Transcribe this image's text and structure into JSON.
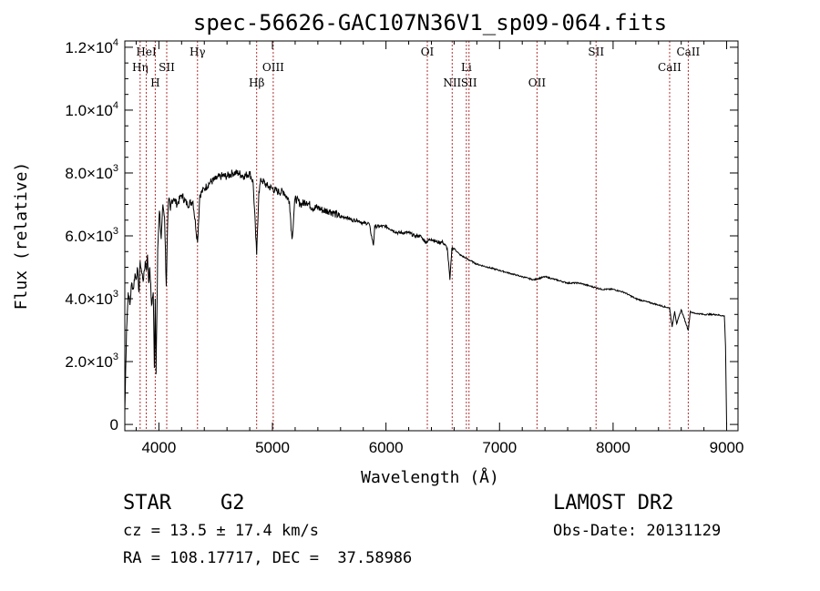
{
  "chart_data": {
    "type": "line",
    "title": "spec-56626-GAC107N36V1_sp09-064.fits",
    "xlabel": "Wavelength (Å)",
    "ylabel": "Flux (relative)",
    "xlim": [
      3700,
      9100
    ],
    "ylim": [
      -200,
      12200
    ],
    "x_ticks": [
      4000,
      5000,
      6000,
      7000,
      8000,
      9000
    ],
    "x_tick_labels": [
      "4000",
      "5000",
      "6000",
      "7000",
      "8000",
      "9000"
    ],
    "y_ticks": [
      0,
      2000,
      4000,
      6000,
      8000,
      10000,
      12000
    ],
    "y_tick_labels": [
      {
        "mantissa": "0",
        "exp": ""
      },
      {
        "mantissa": "2.0×10",
        "exp": "3"
      },
      {
        "mantissa": "4.0×10",
        "exp": "3"
      },
      {
        "mantissa": "6.0×10",
        "exp": "3"
      },
      {
        "mantissa": "8.0×10",
        "exp": "3"
      },
      {
        "mantissa": "1.0×10",
        "exp": "4"
      },
      {
        "mantissa": "1.2×10",
        "exp": "4"
      }
    ],
    "series": [
      {
        "color": "#000000",
        "x": [
          3700,
          3715,
          3730,
          3745,
          3760,
          3775,
          3790,
          3800,
          3810,
          3825,
          3835,
          3850,
          3865,
          3880,
          3890,
          3900,
          3910,
          3920,
          3935,
          3950,
          3960,
          3968,
          3975,
          3990,
          4005,
          4020,
          4035,
          4050,
          4065,
          4080,
          4090,
          4101,
          4110,
          4130,
          4160,
          4200,
          4250,
          4300,
          4340,
          4360,
          4400,
          4450,
          4500,
          4550,
          4600,
          4650,
          4700,
          4750,
          4800,
          4830,
          4861,
          4880,
          4900,
          4950,
          5000,
          5050,
          5100,
          5150,
          5172,
          5200,
          5250,
          5300,
          5350,
          5400,
          5450,
          5500,
          5550,
          5600,
          5650,
          5700,
          5750,
          5800,
          5850,
          5890,
          5900,
          5950,
          6000,
          6050,
          6100,
          6150,
          6200,
          6250,
          6300,
          6350,
          6400,
          6450,
          6500,
          6540,
          6563,
          6580,
          6600,
          6650,
          6700,
          6750,
          6800,
          6900,
          7000,
          7100,
          7200,
          7300,
          7400,
          7500,
          7600,
          7700,
          7800,
          7900,
          8000,
          8100,
          8200,
          8300,
          8400,
          8498,
          8520,
          8542,
          8560,
          8600,
          8662,
          8680,
          8700,
          8800,
          8900,
          8980,
          8990,
          9000
        ],
        "y": [
          400,
          3000,
          4200,
          3800,
          4500,
          4300,
          4800,
          4600,
          5000,
          4200,
          5200,
          4800,
          4600,
          5200,
          4900,
          5400,
          4500,
          5000,
          3800,
          4200,
          1800,
          4000,
          1600,
          5600,
          6800,
          5900,
          7000,
          6600,
          4400,
          6800,
          7200,
          6800,
          7100,
          7200,
          7000,
          7300,
          7000,
          7100,
          5800,
          7300,
          7500,
          7700,
          7800,
          7900,
          7900,
          8000,
          8000,
          7900,
          8000,
          7700,
          5400,
          7400,
          7800,
          7600,
          7500,
          7400,
          7400,
          7100,
          5900,
          7200,
          7000,
          7100,
          6900,
          6900,
          6800,
          6800,
          6700,
          6600,
          6600,
          6500,
          6500,
          6400,
          6400,
          5700,
          6300,
          6300,
          6300,
          6200,
          6100,
          6100,
          6100,
          6000,
          6000,
          5800,
          5900,
          5800,
          5800,
          5600,
          4600,
          5600,
          5600,
          5400,
          5300,
          5200,
          5100,
          5000,
          4900,
          4800,
          4700,
          4600,
          4700,
          4600,
          4500,
          4500,
          4400,
          4300,
          4300,
          4200,
          4000,
          3900,
          3800,
          3700,
          3100,
          3600,
          3200,
          3650,
          3000,
          3600,
          3550,
          3500,
          3500,
          3450,
          2500,
          0
        ]
      }
    ],
    "lines": [
      {
        "label": "Hη",
        "x": 3835,
        "row": 2
      },
      {
        "label": "HeI",
        "x": 3889,
        "row": 1
      },
      {
        "label": "H",
        "x": 3968,
        "row": 3
      },
      {
        "label": "SII",
        "x": 4069,
        "row": 2
      },
      {
        "label": "Hγ",
        "x": 4340,
        "row": 1
      },
      {
        "label": "Hβ",
        "x": 4861,
        "row": 3
      },
      {
        "label": "OIII",
        "x": 5007,
        "row": 2
      },
      {
        "label": "OI",
        "x": 6364,
        "row": 1
      },
      {
        "label": "NII",
        "x": 6583,
        "row": 3
      },
      {
        "label": "Li",
        "x": 6708,
        "row": 2
      },
      {
        "label": "SII",
        "x": 6731,
        "row": 3
      },
      {
        "label": "OII",
        "x": 7330,
        "row": 3
      },
      {
        "label": "SII",
        "x": 7850,
        "row": 1
      },
      {
        "label": "CaII",
        "x": 8498,
        "row": 2
      },
      {
        "label": "CaII",
        "x": 8662,
        "row": 1
      }
    ],
    "grid": false
  },
  "info": {
    "object_class": "STAR",
    "subclass": "G2",
    "survey": "LAMOST DR2",
    "cz": "cz = 13.5 ± 17.4 km/s",
    "obs_date": "Obs-Date: 20131129",
    "coords": "RA = 108.17717, DEC =  37.58986"
  }
}
